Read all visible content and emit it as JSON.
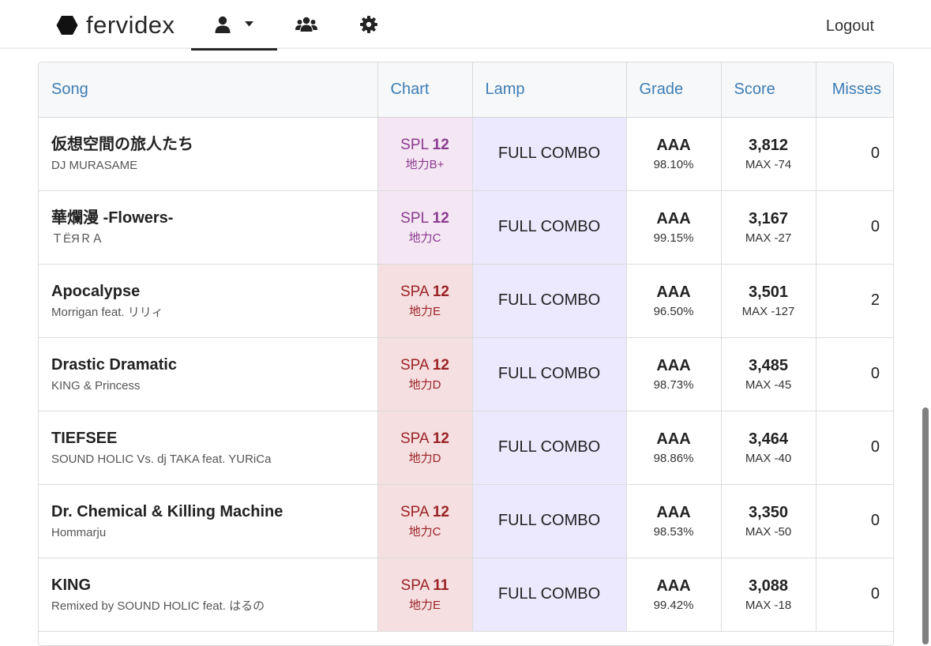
{
  "app": {
    "name": "fervidex",
    "logout_label": "Logout"
  },
  "nav": {
    "items": [
      {
        "icon": "user-icon",
        "has_dropdown": true,
        "active": true
      },
      {
        "icon": "users-icon",
        "has_dropdown": false,
        "active": false
      },
      {
        "icon": "gear-icon",
        "has_dropdown": false,
        "active": false
      }
    ]
  },
  "table": {
    "headers": {
      "song": "Song",
      "chart": "Chart",
      "lamp": "Lamp",
      "grade": "Grade",
      "score": "Score",
      "misses": "Misses"
    },
    "rows": [
      {
        "title": "仮想空間の旅人たち",
        "artist": "DJ MURASAME",
        "chart_type": "SPL",
        "level": "12",
        "tier": "地力B+",
        "lamp": "FULL COMBO",
        "grade": "AAA",
        "percent": "98.10%",
        "score": "3,812",
        "max_diff": "MAX -74",
        "misses": "0"
      },
      {
        "title": "華爛漫 -Flowers-",
        "artist": "ＴËЯＲＡ",
        "chart_type": "SPL",
        "level": "12",
        "tier": "地力C",
        "lamp": "FULL COMBO",
        "grade": "AAA",
        "percent": "99.15%",
        "score": "3,167",
        "max_diff": "MAX -27",
        "misses": "0"
      },
      {
        "title": "Apocalypse",
        "artist": "Morrigan feat. リリィ",
        "chart_type": "SPA",
        "level": "12",
        "tier": "地力E",
        "lamp": "FULL COMBO",
        "grade": "AAA",
        "percent": "96.50%",
        "score": "3,501",
        "max_diff": "MAX -127",
        "misses": "2"
      },
      {
        "title": "Drastic Dramatic",
        "artist": "KING & Princess",
        "chart_type": "SPA",
        "level": "12",
        "tier": "地力D",
        "lamp": "FULL COMBO",
        "grade": "AAA",
        "percent": "98.73%",
        "score": "3,485",
        "max_diff": "MAX -45",
        "misses": "0"
      },
      {
        "title": "TIEFSEE",
        "artist": "SOUND HOLIC Vs. dj TAKA feat. YURiCa",
        "chart_type": "SPA",
        "level": "12",
        "tier": "地力D",
        "lamp": "FULL COMBO",
        "grade": "AAA",
        "percent": "98.86%",
        "score": "3,464",
        "max_diff": "MAX -40",
        "misses": "0"
      },
      {
        "title": "Dr. Chemical & Killing Machine",
        "artist": "Hommarju",
        "chart_type": "SPA",
        "level": "12",
        "tier": "地力C",
        "lamp": "FULL COMBO",
        "grade": "AAA",
        "percent": "98.53%",
        "score": "3,350",
        "max_diff": "MAX -50",
        "misses": "0"
      },
      {
        "title": "KING",
        "artist": "Remixed by SOUND HOLIC feat. はるの",
        "chart_type": "SPA",
        "level": "11",
        "tier": "地力E",
        "lamp": "FULL COMBO",
        "grade": "AAA",
        "percent": "99.42%",
        "score": "3,088",
        "max_diff": "MAX -18",
        "misses": "0"
      }
    ]
  },
  "colors": {
    "header_text": "#3c7db5",
    "spl_bg": "#f4e6f3",
    "spl_text": "#8a3b8f",
    "spa_bg": "#f6dfe0",
    "spa_text": "#9a2226",
    "lamp_full_combo_bg": "#ece8fe"
  }
}
